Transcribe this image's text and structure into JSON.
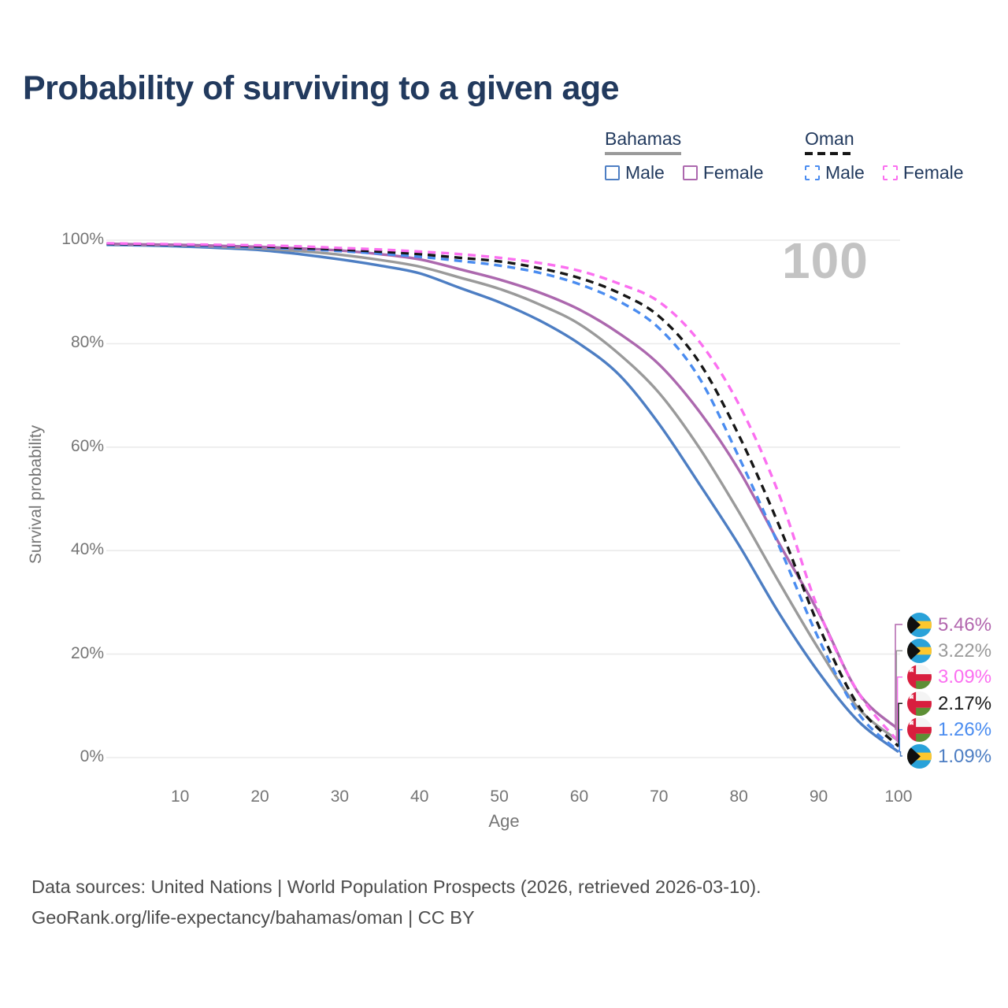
{
  "title": "Probability of surviving to a given age",
  "watermark": "100",
  "legend": {
    "groups": [
      {
        "name": "Bahamas",
        "line_style": "solid",
        "line_color": "#9a9a9a",
        "items": [
          {
            "label": "Male",
            "color": "#4d7ec3",
            "dashed": false
          },
          {
            "label": "Female",
            "color": "#ac68ae",
            "dashed": false
          }
        ]
      },
      {
        "name": "Oman",
        "line_style": "dashed",
        "line_color": "#161616",
        "items": [
          {
            "label": "Male",
            "color": "#4a8cf0",
            "dashed": true
          },
          {
            "label": "Female",
            "color": "#fb6ff0",
            "dashed": true
          }
        ]
      }
    ]
  },
  "chart_data": {
    "type": "line",
    "title": "Probability of surviving to a given age",
    "xlabel": "Age",
    "ylabel": "Survival probability",
    "xlim": [
      0,
      100
    ],
    "ylim": [
      0,
      100
    ],
    "grid": true,
    "x_ticks": [
      10,
      20,
      30,
      40,
      50,
      60,
      70,
      80,
      90,
      100
    ],
    "y_ticks": [
      {
        "value": 0,
        "label": "0%"
      },
      {
        "value": 20,
        "label": "20%"
      },
      {
        "value": 40,
        "label": "40%"
      },
      {
        "value": 60,
        "label": "60%"
      },
      {
        "value": 80,
        "label": "80%"
      },
      {
        "value": 100,
        "label": "100%"
      }
    ],
    "x": [
      0,
      5,
      10,
      15,
      20,
      25,
      30,
      35,
      40,
      45,
      50,
      55,
      60,
      65,
      70,
      75,
      80,
      85,
      90,
      95,
      100
    ],
    "series": [
      {
        "name": "Bahamas Male",
        "country": "bahamas",
        "sex": "male",
        "color": "#4d7ec3",
        "dashed": false,
        "end_label": "1.09%",
        "values": [
          99.1,
          99.0,
          98.8,
          98.5,
          98.1,
          97.3,
          96.3,
          95.1,
          93.6,
          90.8,
          88.0,
          84.5,
          80.0,
          74.0,
          64.5,
          53.0,
          41.1,
          28.0,
          16.5,
          7.0,
          1.09
        ]
      },
      {
        "name": "Bahamas Both",
        "country": "bahamas",
        "sex": "both",
        "color": "#9a9a9a",
        "dashed": false,
        "end_label": "3.22%",
        "values": [
          99.2,
          99.1,
          99.0,
          98.7,
          98.4,
          97.9,
          97.2,
          96.2,
          94.9,
          92.8,
          90.6,
          87.6,
          83.8,
          78.0,
          70.5,
          60.0,
          47.5,
          34.0,
          21.0,
          9.5,
          3.22
        ]
      },
      {
        "name": "Bahamas Female",
        "country": "bahamas",
        "sex": "female",
        "color": "#ac68ae",
        "dashed": false,
        "end_label": "5.46%",
        "values": [
          99.3,
          99.2,
          99.1,
          98.9,
          98.7,
          98.4,
          98.0,
          97.3,
          96.3,
          94.4,
          92.4,
          89.9,
          86.6,
          82.0,
          76.0,
          67.0,
          55.6,
          41.5,
          28.0,
          12.5,
          5.46
        ]
      },
      {
        "name": "Oman Male",
        "country": "oman",
        "sex": "male",
        "color": "#4a8cf0",
        "dashed": true,
        "end_label": "1.26%",
        "values": [
          99.2,
          99.1,
          99.0,
          98.8,
          98.6,
          98.3,
          97.9,
          97.4,
          96.8,
          96.0,
          95.1,
          93.7,
          91.5,
          88.2,
          83.0,
          73.5,
          58.1,
          41.0,
          23.0,
          8.5,
          1.26
        ]
      },
      {
        "name": "Oman Both",
        "country": "oman",
        "sex": "both",
        "color": "#161616",
        "dashed": true,
        "end_label": "2.17%",
        "values": [
          99.3,
          99.2,
          99.1,
          99.0,
          98.8,
          98.5,
          98.2,
          97.8,
          97.3,
          96.6,
          95.9,
          94.6,
          92.7,
          89.8,
          85.3,
          76.5,
          62.3,
          45.0,
          25.5,
          10.0,
          2.17
        ]
      },
      {
        "name": "Oman Female",
        "country": "oman",
        "sex": "female",
        "color": "#fb6ff0",
        "dashed": true,
        "end_label": "3.09%",
        "values": [
          99.4,
          99.3,
          99.2,
          99.1,
          99.0,
          98.8,
          98.5,
          98.2,
          97.8,
          97.3,
          96.6,
          95.6,
          94.1,
          91.6,
          88.1,
          80.5,
          68.3,
          51.0,
          28.5,
          12.5,
          3.09
        ]
      }
    ]
  },
  "end_labels": [
    {
      "text": "5.46%",
      "value": 5.46,
      "flag": "bahamas",
      "color": "#b266ae",
      "series": "Bahamas Female"
    },
    {
      "text": "3.22%",
      "value": 3.22,
      "flag": "bahamas",
      "color": "#9a9a9a",
      "series": "Bahamas Both"
    },
    {
      "text": "3.09%",
      "value": 3.09,
      "flag": "oman",
      "color": "#fb6ff0",
      "series": "Oman Female"
    },
    {
      "text": "2.17%",
      "value": 2.17,
      "flag": "oman",
      "color": "#1a1a1a",
      "series": "Oman Both"
    },
    {
      "text": "1.26%",
      "value": 1.26,
      "flag": "oman",
      "color": "#4a8cf0",
      "series": "Oman Male"
    },
    {
      "text": "1.09%",
      "value": 1.09,
      "flag": "bahamas",
      "color": "#4d7ec3",
      "series": "Bahamas Male"
    }
  ],
  "footer": {
    "line1": "Data sources: United Nations | World Population Prospects (2026, retrieved 2026-03-10).",
    "line2": "GeoRank.org/life-expectancy/bahamas/oman | CC BY"
  },
  "colors": {
    "grid": "#ebebeb",
    "axis_text": "#757575",
    "title_text": "#223a5e",
    "watermark": "#c3c3c3",
    "footer_text": "#4c4c4c"
  }
}
